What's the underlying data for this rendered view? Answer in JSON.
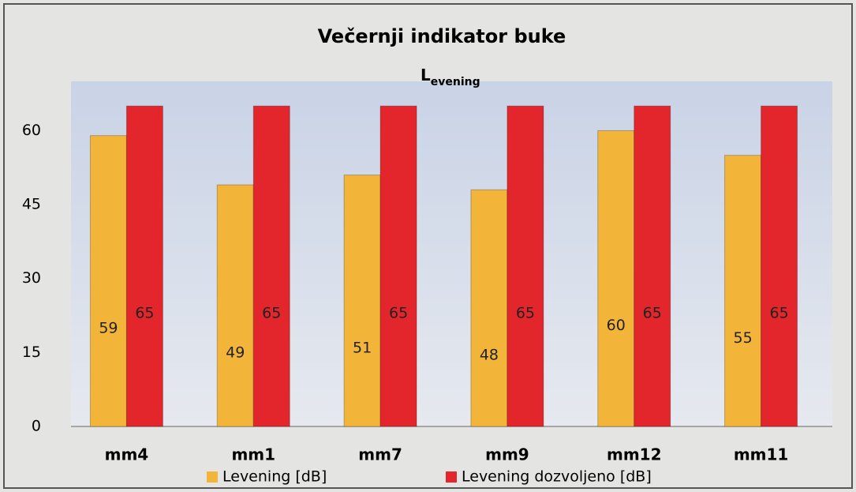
{
  "chart_data": {
    "type": "bar",
    "title": "Večernji indikator buke",
    "subtitle": {
      "main": "L",
      "sub": "evening"
    },
    "categories": [
      "mm4",
      "mm1",
      "mm7",
      "mm9",
      "mm12",
      "mm11"
    ],
    "series": [
      {
        "name": "Levening [dB]",
        "color": "#f2b53a",
        "values": [
          59,
          49,
          51,
          48,
          60,
          55
        ]
      },
      {
        "name": "Levening dozvoljeno [dB]",
        "color": "#e3262b",
        "values": [
          65,
          65,
          65,
          65,
          65,
          65
        ]
      }
    ],
    "ylim": [
      0,
      70
    ],
    "yticks": [
      0,
      15,
      30,
      45,
      60
    ],
    "grid": false,
    "legend": "bottom"
  }
}
